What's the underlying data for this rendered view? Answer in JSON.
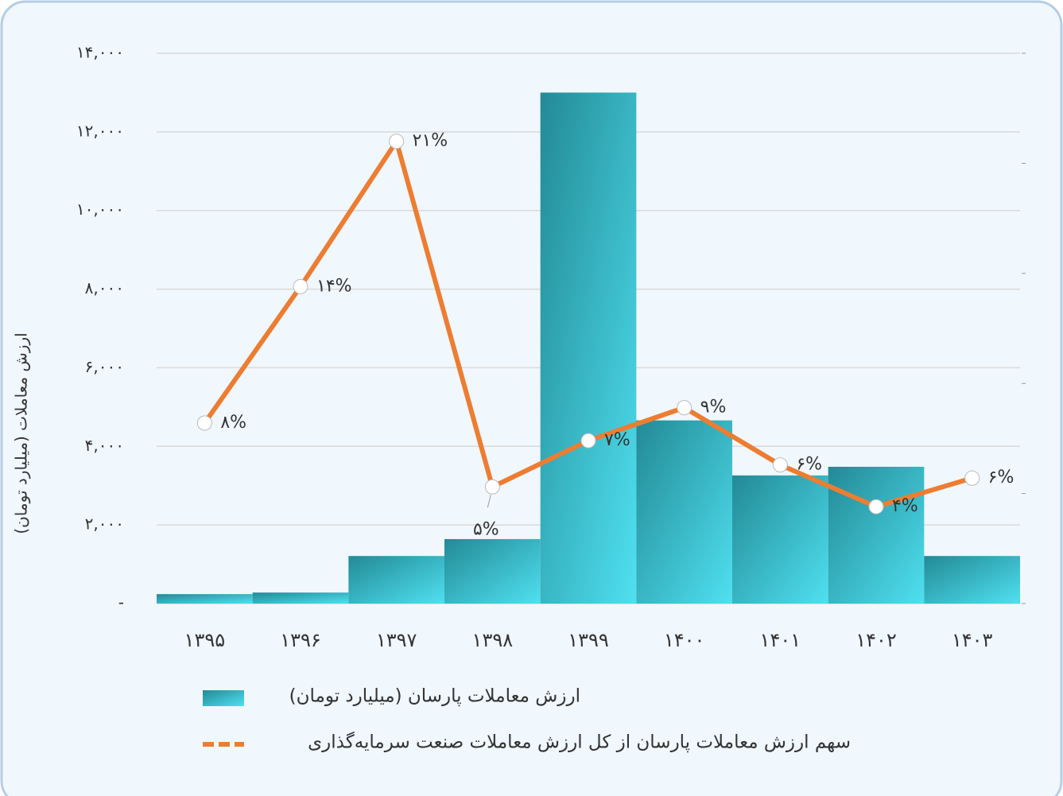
{
  "chart_data": {
    "type": "bar-line",
    "y_label": "ارزش معاملات (میلیارد تومان)",
    "categories": [
      "۱۳۹۵",
      "۱۳۹۶",
      "۱۳۹۷",
      "۱۳۹۸",
      "۱۳۹۹",
      "۱۴۰۰",
      "۱۴۰۱",
      "۱۴۰۲",
      "۱۴۰۳"
    ],
    "series": [
      {
        "name": "ارزش معاملات پارسان (میلیارد تومان)",
        "type": "bar",
        "color": "#2fb8c8",
        "values": [
          240,
          280,
          1210,
          1640,
          13000,
          4660,
          3260,
          3480,
          1210
        ]
      },
      {
        "name": "سهم ارزش معاملات پارسان از کل ارزش معاملات صنعت سرمایه‌گذاری",
        "type": "line",
        "axis": "y2",
        "color": "#ed7d31",
        "values": [
          8.2,
          14.4,
          21,
          5.3,
          7.4,
          8.9,
          6.3,
          4.4,
          5.7
        ],
        "value_labels": [
          "۸%",
          "۱۴%",
          "۲۱%",
          "۵%",
          "۷%",
          "۹%",
          "۶%",
          "۴%",
          "۶%"
        ]
      }
    ],
    "ylim": [
      0,
      14000
    ],
    "yticks": [
      {
        "value": 0,
        "label": "-"
      },
      {
        "value": 2000,
        "label": "۲,۰۰۰"
      },
      {
        "value": 4000,
        "label": "۴,۰۰۰"
      },
      {
        "value": 6000,
        "label": "۶,۰۰۰"
      },
      {
        "value": 8000,
        "label": "۸,۰۰۰"
      },
      {
        "value": 10000,
        "label": "۱۰,۰۰۰"
      },
      {
        "value": 12000,
        "label": "۱۲,۰۰۰"
      },
      {
        "value": 14000,
        "label": "۱۴,۰۰۰"
      }
    ],
    "y2lim": [
      0,
      25
    ],
    "y2ticks": [
      0,
      5,
      10,
      15,
      20,
      25
    ],
    "grid": true
  }
}
